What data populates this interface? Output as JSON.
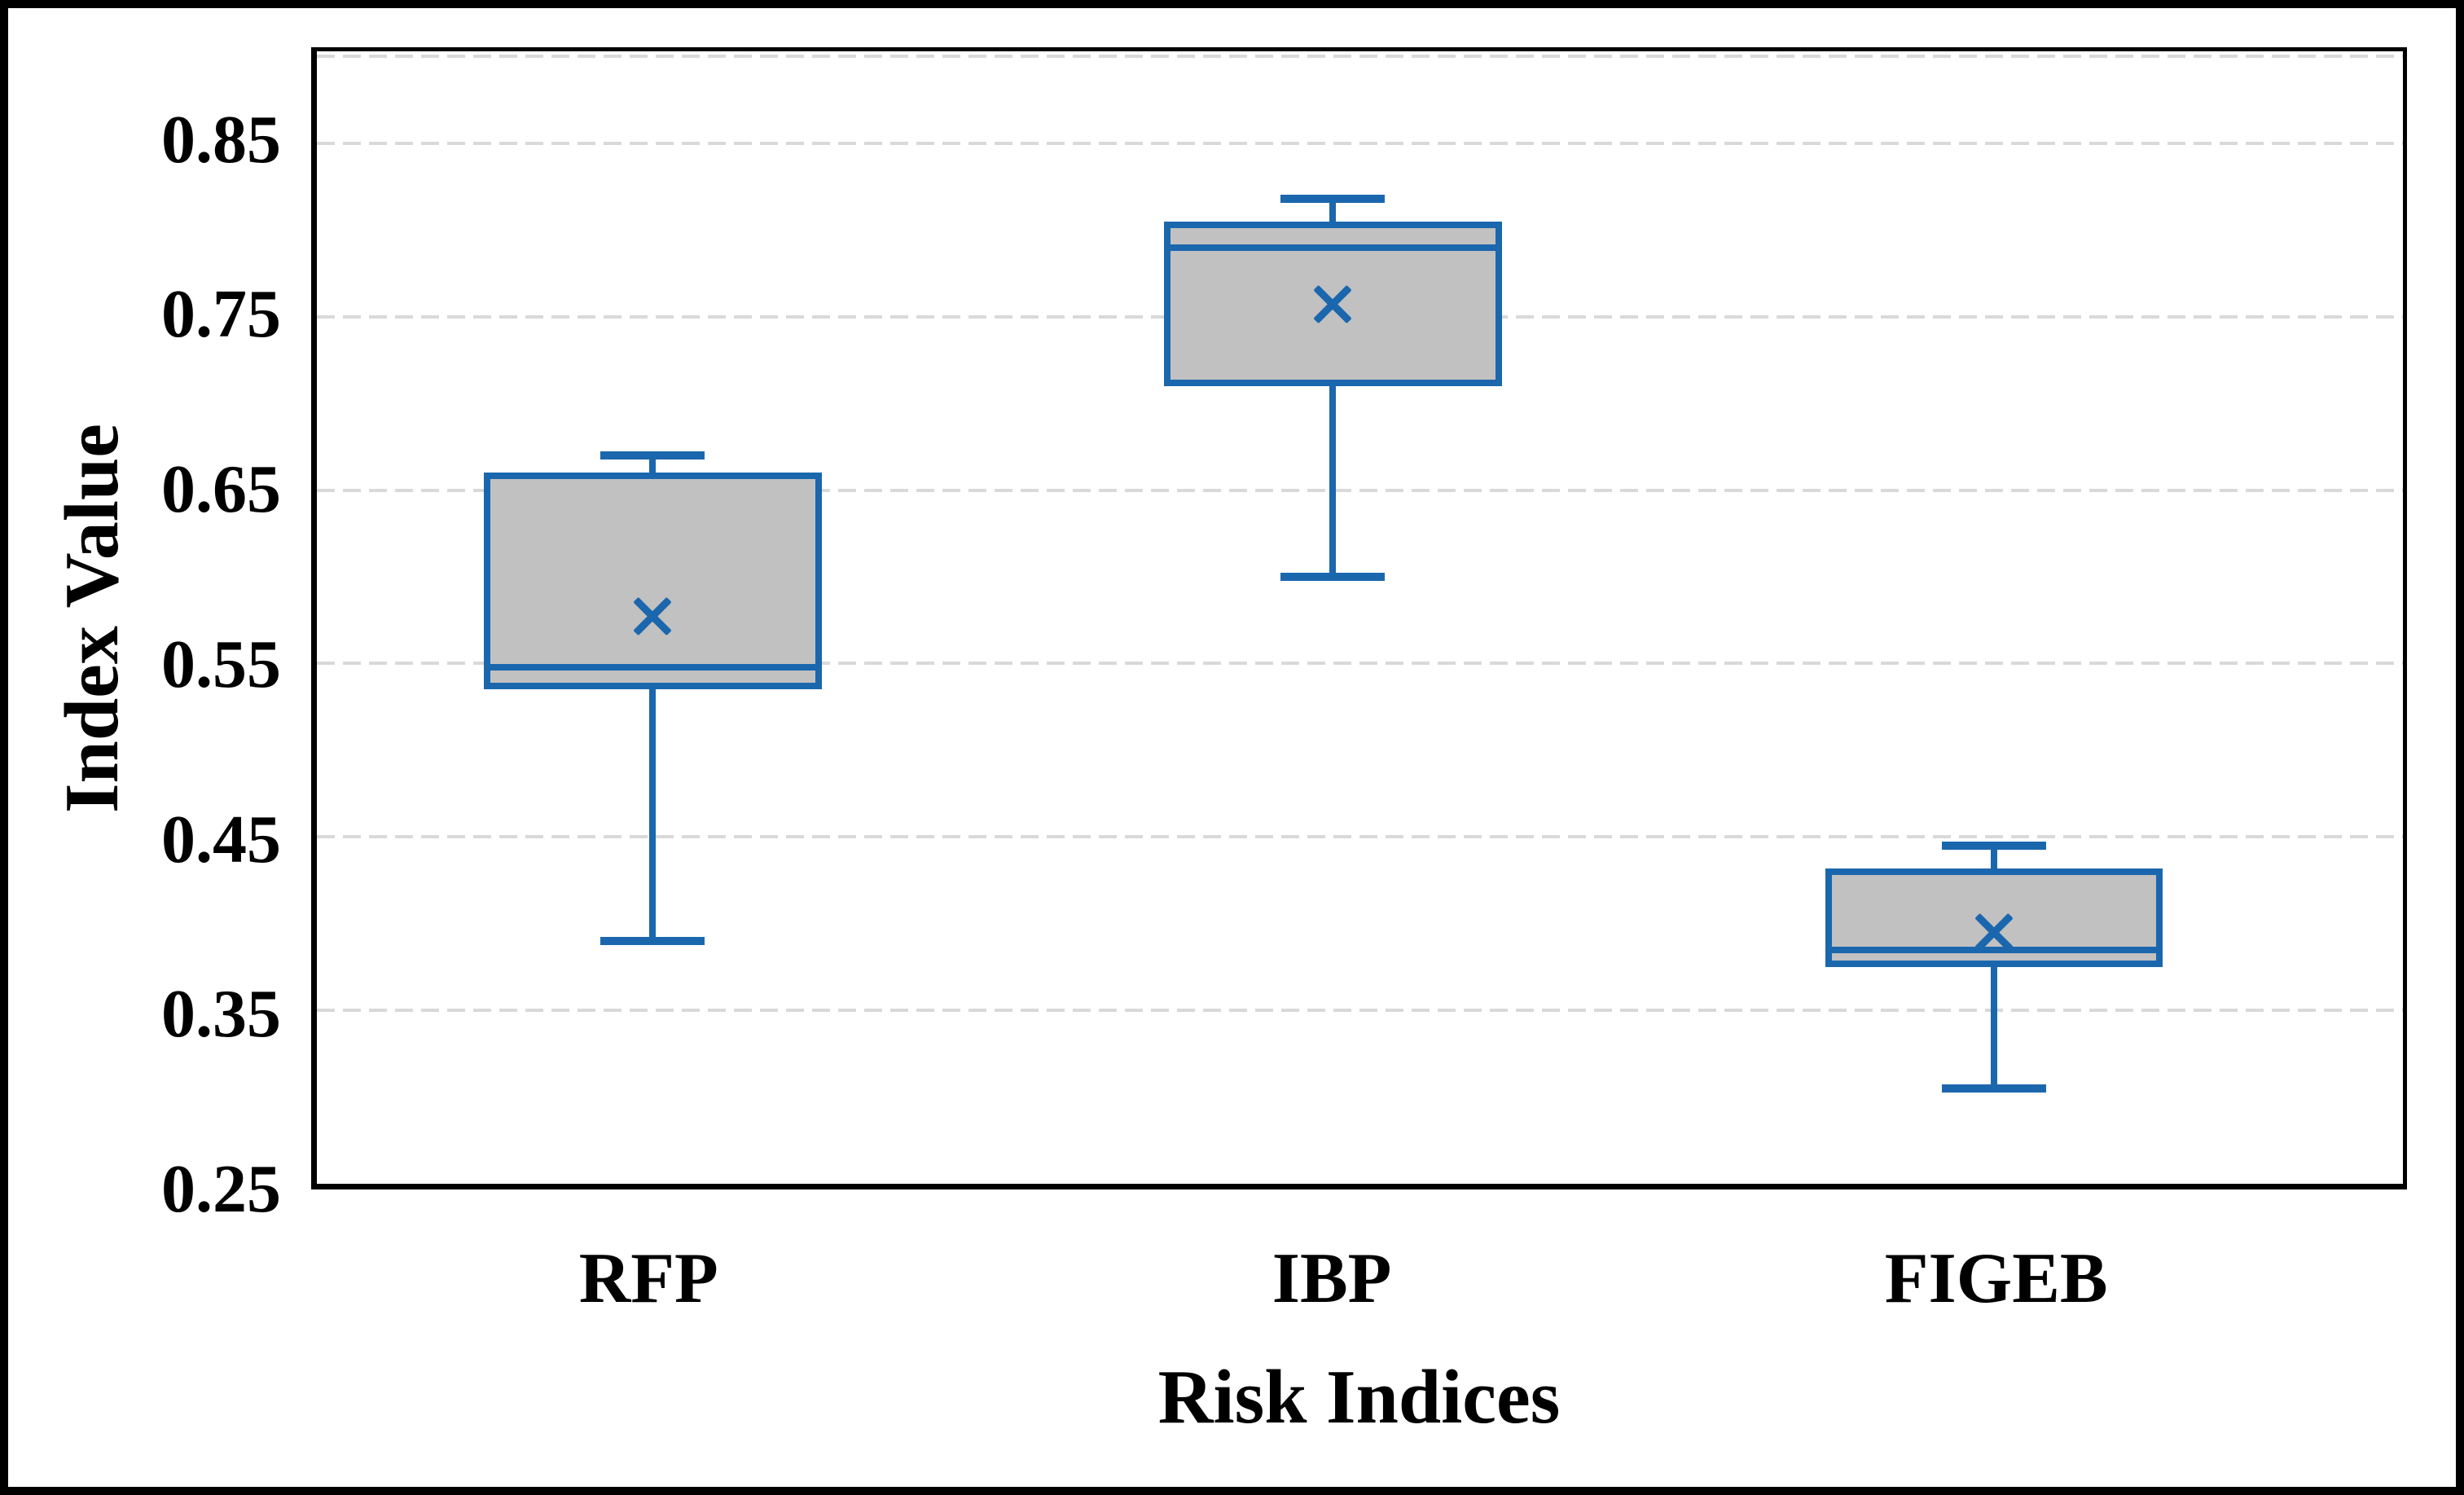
{
  "figure": {
    "background": "#ffffff",
    "outer_border_color": "#000000"
  },
  "chart_data": {
    "type": "boxplot",
    "title": "",
    "xlabel": "Risk Indices",
    "ylabel": "Index Value",
    "categories": [
      "RFP",
      "IBP",
      "FIGEB"
    ],
    "yticks": [
      0.85,
      0.75,
      0.65,
      0.55,
      0.45,
      0.35,
      0.25
    ],
    "ytick_labels": [
      "0.85",
      "0.75",
      "0.65",
      "0.55",
      "0.45",
      "0.35",
      "0.25"
    ],
    "ylim": [
      0.25,
      0.903
    ],
    "grid": "horizontal-dashed",
    "grid_values": [
      0.9,
      0.85,
      0.75,
      0.65,
      0.55,
      0.45,
      0.35
    ],
    "legend": "none",
    "series": [
      {
        "name": "RFP",
        "whisker_low": 0.39,
        "q1": 0.535,
        "median": 0.548,
        "q3": 0.66,
        "whisker_high": 0.67,
        "mean": 0.577
      },
      {
        "name": "IBP",
        "whisker_low": 0.6,
        "q1": 0.71,
        "median": 0.79,
        "q3": 0.805,
        "whisker_high": 0.818,
        "mean": 0.757
      },
      {
        "name": "FIGEB",
        "whisker_low": 0.305,
        "q1": 0.375,
        "median": 0.385,
        "q3": 0.432,
        "whisker_high": 0.445,
        "mean": 0.395
      }
    ],
    "colors": {
      "box_fill": "#c1c1c1",
      "box_border": "#1b67ae",
      "whisker": "#1b67ae",
      "median": "#1b67ae",
      "mean_marker": "#1b67ae",
      "gridline": "#d9d9d9",
      "axis": "#000000",
      "text": "#000000"
    },
    "layout": {
      "centers_pct": [
        16.1,
        48.7,
        80.4
      ],
      "box_width_pct": 16.2,
      "cap_width_pct": 5.0,
      "legend_position": "none"
    }
  }
}
